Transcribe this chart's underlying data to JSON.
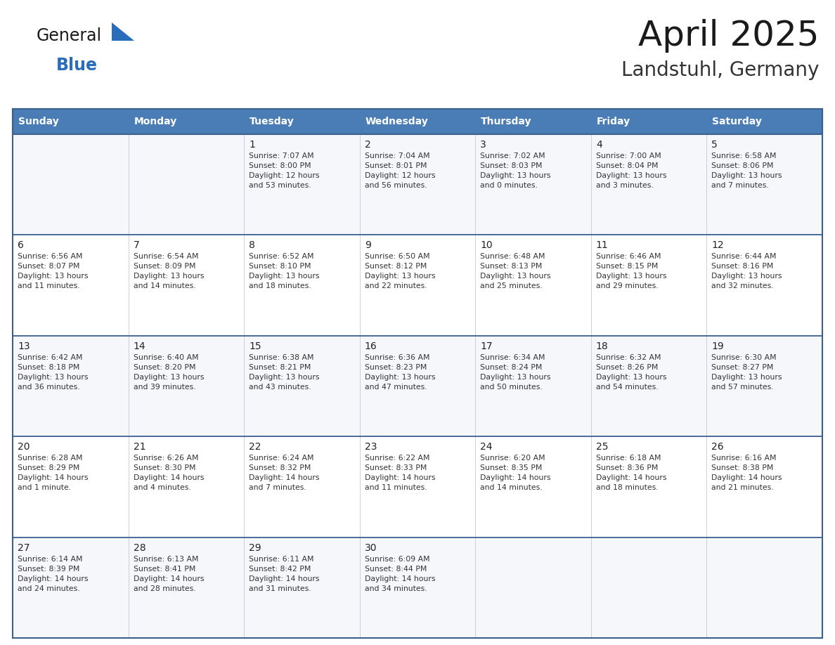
{
  "title": "April 2025",
  "subtitle": "Landstuhl, Germany",
  "days_of_week": [
    "Sunday",
    "Monday",
    "Tuesday",
    "Wednesday",
    "Thursday",
    "Friday",
    "Saturday"
  ],
  "header_bg": "#4A7DB5",
  "header_text": "#FFFFFF",
  "row0_bg": "#F5F7FA",
  "row1_bg": "#FFFFFF",
  "row2_bg": "#F5F7FA",
  "row3_bg": "#FFFFFF",
  "row4_bg": "#F5F7FA",
  "cell_border": "#C8D0DA",
  "week_border": "#3A6090",
  "logo_general_color": "#1a1a1a",
  "logo_blue_color": "#2A6EBB",
  "title_color": "#1a1a1a",
  "subtitle_color": "#333333",
  "day_number_color": "#222222",
  "cell_text_color": "#333333",
  "calendar_data": [
    [
      {
        "day": null,
        "info": ""
      },
      {
        "day": null,
        "info": ""
      },
      {
        "day": 1,
        "info": "Sunrise: 7:07 AM\nSunset: 8:00 PM\nDaylight: 12 hours\nand 53 minutes."
      },
      {
        "day": 2,
        "info": "Sunrise: 7:04 AM\nSunset: 8:01 PM\nDaylight: 12 hours\nand 56 minutes."
      },
      {
        "day": 3,
        "info": "Sunrise: 7:02 AM\nSunset: 8:03 PM\nDaylight: 13 hours\nand 0 minutes."
      },
      {
        "day": 4,
        "info": "Sunrise: 7:00 AM\nSunset: 8:04 PM\nDaylight: 13 hours\nand 3 minutes."
      },
      {
        "day": 5,
        "info": "Sunrise: 6:58 AM\nSunset: 8:06 PM\nDaylight: 13 hours\nand 7 minutes."
      }
    ],
    [
      {
        "day": 6,
        "info": "Sunrise: 6:56 AM\nSunset: 8:07 PM\nDaylight: 13 hours\nand 11 minutes."
      },
      {
        "day": 7,
        "info": "Sunrise: 6:54 AM\nSunset: 8:09 PM\nDaylight: 13 hours\nand 14 minutes."
      },
      {
        "day": 8,
        "info": "Sunrise: 6:52 AM\nSunset: 8:10 PM\nDaylight: 13 hours\nand 18 minutes."
      },
      {
        "day": 9,
        "info": "Sunrise: 6:50 AM\nSunset: 8:12 PM\nDaylight: 13 hours\nand 22 minutes."
      },
      {
        "day": 10,
        "info": "Sunrise: 6:48 AM\nSunset: 8:13 PM\nDaylight: 13 hours\nand 25 minutes."
      },
      {
        "day": 11,
        "info": "Sunrise: 6:46 AM\nSunset: 8:15 PM\nDaylight: 13 hours\nand 29 minutes."
      },
      {
        "day": 12,
        "info": "Sunrise: 6:44 AM\nSunset: 8:16 PM\nDaylight: 13 hours\nand 32 minutes."
      }
    ],
    [
      {
        "day": 13,
        "info": "Sunrise: 6:42 AM\nSunset: 8:18 PM\nDaylight: 13 hours\nand 36 minutes."
      },
      {
        "day": 14,
        "info": "Sunrise: 6:40 AM\nSunset: 8:20 PM\nDaylight: 13 hours\nand 39 minutes."
      },
      {
        "day": 15,
        "info": "Sunrise: 6:38 AM\nSunset: 8:21 PM\nDaylight: 13 hours\nand 43 minutes."
      },
      {
        "day": 16,
        "info": "Sunrise: 6:36 AM\nSunset: 8:23 PM\nDaylight: 13 hours\nand 47 minutes."
      },
      {
        "day": 17,
        "info": "Sunrise: 6:34 AM\nSunset: 8:24 PM\nDaylight: 13 hours\nand 50 minutes."
      },
      {
        "day": 18,
        "info": "Sunrise: 6:32 AM\nSunset: 8:26 PM\nDaylight: 13 hours\nand 54 minutes."
      },
      {
        "day": 19,
        "info": "Sunrise: 6:30 AM\nSunset: 8:27 PM\nDaylight: 13 hours\nand 57 minutes."
      }
    ],
    [
      {
        "day": 20,
        "info": "Sunrise: 6:28 AM\nSunset: 8:29 PM\nDaylight: 14 hours\nand 1 minute."
      },
      {
        "day": 21,
        "info": "Sunrise: 6:26 AM\nSunset: 8:30 PM\nDaylight: 14 hours\nand 4 minutes."
      },
      {
        "day": 22,
        "info": "Sunrise: 6:24 AM\nSunset: 8:32 PM\nDaylight: 14 hours\nand 7 minutes."
      },
      {
        "day": 23,
        "info": "Sunrise: 6:22 AM\nSunset: 8:33 PM\nDaylight: 14 hours\nand 11 minutes."
      },
      {
        "day": 24,
        "info": "Sunrise: 6:20 AM\nSunset: 8:35 PM\nDaylight: 14 hours\nand 14 minutes."
      },
      {
        "day": 25,
        "info": "Sunrise: 6:18 AM\nSunset: 8:36 PM\nDaylight: 14 hours\nand 18 minutes."
      },
      {
        "day": 26,
        "info": "Sunrise: 6:16 AM\nSunset: 8:38 PM\nDaylight: 14 hours\nand 21 minutes."
      }
    ],
    [
      {
        "day": 27,
        "info": "Sunrise: 6:14 AM\nSunset: 8:39 PM\nDaylight: 14 hours\nand 24 minutes."
      },
      {
        "day": 28,
        "info": "Sunrise: 6:13 AM\nSunset: 8:41 PM\nDaylight: 14 hours\nand 28 minutes."
      },
      {
        "day": 29,
        "info": "Sunrise: 6:11 AM\nSunset: 8:42 PM\nDaylight: 14 hours\nand 31 minutes."
      },
      {
        "day": 30,
        "info": "Sunrise: 6:09 AM\nSunset: 8:44 PM\nDaylight: 14 hours\nand 34 minutes."
      },
      {
        "day": null,
        "info": ""
      },
      {
        "day": null,
        "info": ""
      },
      {
        "day": null,
        "info": ""
      }
    ]
  ]
}
